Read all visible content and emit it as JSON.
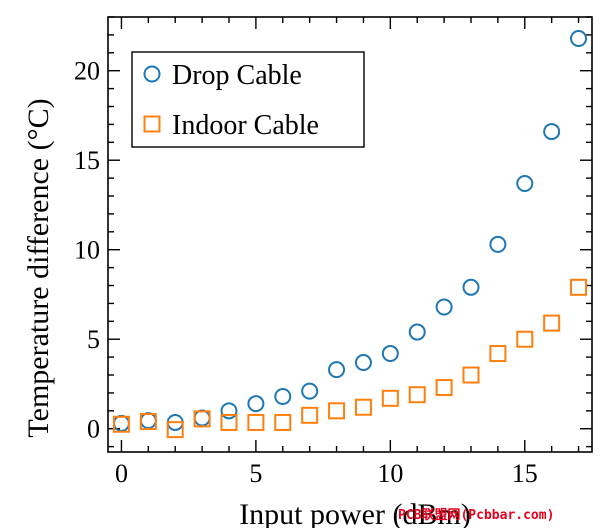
{
  "chart_data": {
    "type": "scatter",
    "title": "",
    "xlabel": "Input power (dBm)",
    "ylabel": "Temperature difference (°C)",
    "xlim": [
      -0.5,
      17.5
    ],
    "ylim": [
      -1.3,
      23
    ],
    "xticks": [
      0,
      5,
      10,
      15
    ],
    "yticks": [
      0,
      5,
      10,
      15,
      20
    ],
    "grid": false,
    "legend_position": "top-left",
    "series": [
      {
        "name": "Drop Cable",
        "marker": "circle",
        "color": "#1f77b4",
        "x": [
          0,
          1,
          2,
          3,
          4,
          5,
          6,
          7,
          8,
          9,
          10,
          11,
          12,
          13,
          14,
          15,
          16,
          17
        ],
        "y": [
          0.3,
          0.45,
          0.35,
          0.6,
          1.0,
          1.4,
          1.8,
          2.1,
          3.3,
          3.7,
          4.2,
          5.4,
          6.8,
          7.9,
          10.3,
          13.7,
          16.6,
          21.8
        ]
      },
      {
        "name": "Indoor Cable",
        "marker": "square",
        "color": "#ff7f0e",
        "x": [
          0,
          1,
          2,
          3,
          4,
          5,
          6,
          7,
          8,
          9,
          10,
          11,
          12,
          13,
          14,
          15,
          16,
          17
        ],
        "y": [
          0.25,
          0.4,
          -0.05,
          0.55,
          0.35,
          0.35,
          0.35,
          0.75,
          1.0,
          1.2,
          1.7,
          1.9,
          2.3,
          3.0,
          4.2,
          5.0,
          5.9,
          7.9
        ]
      }
    ]
  },
  "watermark": "PCB联盟网(Pcbbar.com)"
}
